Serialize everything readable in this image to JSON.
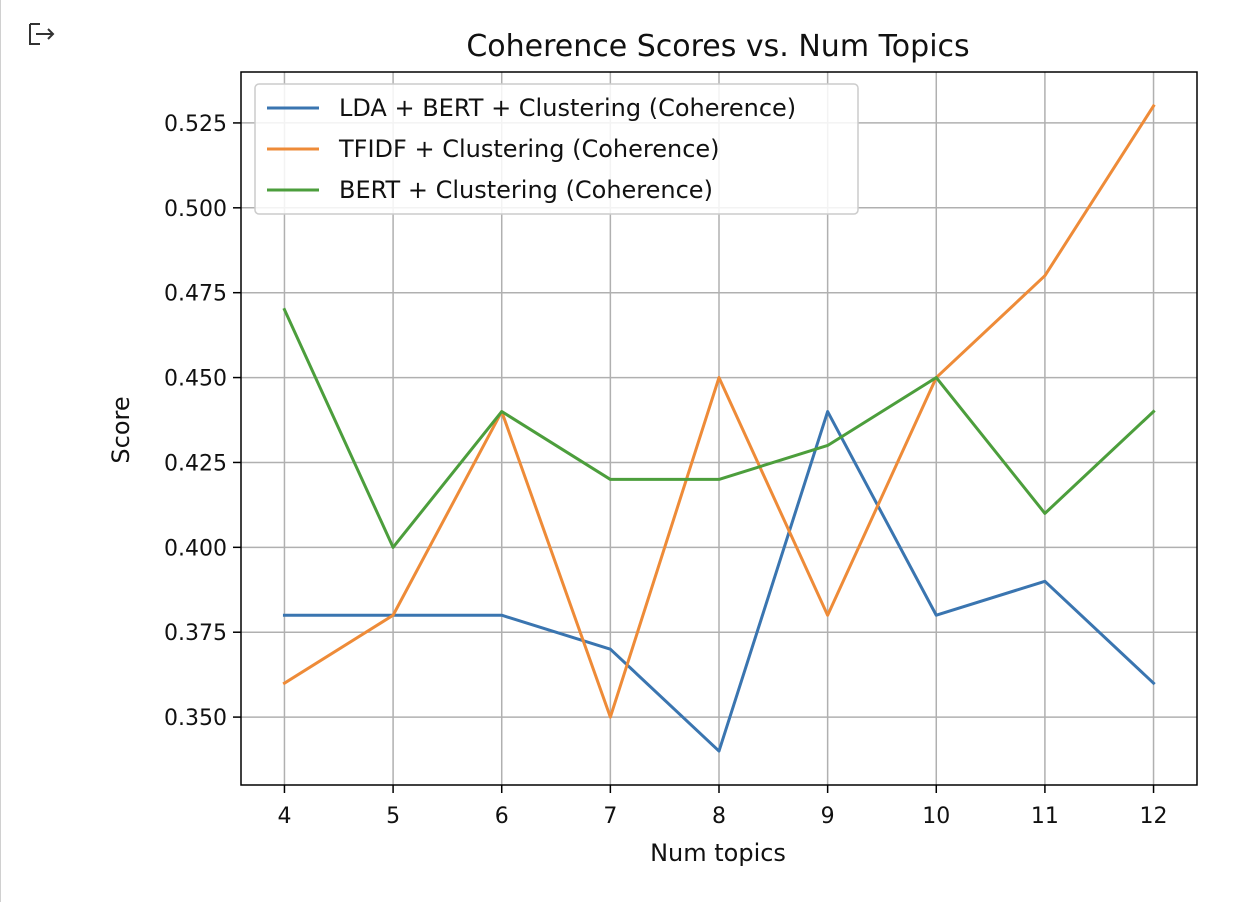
{
  "output_icon": "output-arrow-icon",
  "chart_data": {
    "type": "line",
    "title": "Coherence Scores vs. Num Topics",
    "xlabel": "Num topics",
    "ylabel": "Score",
    "x": [
      4,
      5,
      6,
      7,
      8,
      9,
      10,
      11,
      12
    ],
    "xlim": [
      3.6,
      12.4
    ],
    "ylim": [
      0.33,
      0.54
    ],
    "yticks": [
      0.35,
      0.375,
      0.4,
      0.425,
      0.45,
      0.475,
      0.5,
      0.525
    ],
    "ytick_labels": [
      "0.350",
      "0.375",
      "0.400",
      "0.425",
      "0.450",
      "0.475",
      "0.500",
      "0.525"
    ],
    "xtick_labels": [
      "4",
      "5",
      "6",
      "7",
      "8",
      "9",
      "10",
      "11",
      "12"
    ],
    "grid": true,
    "legend_position": "top-left",
    "series": [
      {
        "name": "LDA + BERT + Clustering (Coherence)",
        "color": "#3a75b0",
        "values": [
          0.38,
          0.38,
          0.38,
          0.37,
          0.34,
          0.44,
          0.38,
          0.39,
          0.36
        ]
      },
      {
        "name": "TFIDF + Clustering (Coherence)",
        "color": "#ee8b38",
        "values": [
          0.36,
          0.38,
          0.44,
          0.35,
          0.45,
          0.38,
          0.45,
          0.48,
          0.53
        ]
      },
      {
        "name": "BERT + Clustering (Coherence)",
        "color": "#4c9e3c",
        "values": [
          0.47,
          0.4,
          0.44,
          0.42,
          0.42,
          0.43,
          0.45,
          0.41,
          0.44
        ]
      }
    ]
  }
}
